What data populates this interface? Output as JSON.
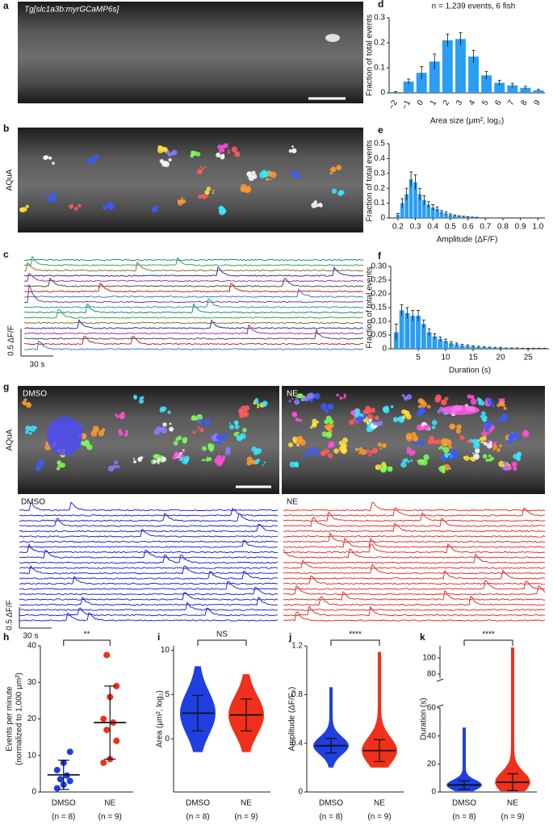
{
  "figure": {
    "panels": [
      "a",
      "b",
      "c",
      "g"
    ],
    "a": {
      "label": "Tg[slc1a3b:myrGCaMP6s]"
    },
    "b": {
      "label": "AQuA"
    },
    "c": {
      "scale_y": "0.5 ΔF/F",
      "scale_x": "30 s"
    },
    "g": {
      "conditions": [
        "DMSO",
        "NE"
      ],
      "image_label": "AQuA",
      "scale_y": "0.5 ΔF/F",
      "scale_x": "30 s"
    }
  },
  "chart_data": [
    {
      "panel": "d",
      "type": "bar",
      "annotation": "n = 1,239 events, 6 fish",
      "xlabel": "Area size (μm², log₂)",
      "ylabel": "Fraction of total events",
      "categories": [
        "−2",
        "−1",
        "0",
        "1",
        "2",
        "3",
        "4",
        "5",
        "6",
        "7",
        "8",
        "9"
      ],
      "values": [
        0.003,
        0.045,
        0.08,
        0.125,
        0.21,
        0.215,
        0.145,
        0.07,
        0.04,
        0.03,
        0.02,
        0.01
      ],
      "errors": [
        0.002,
        0.01,
        0.025,
        0.03,
        0.025,
        0.025,
        0.025,
        0.015,
        0.01,
        0.008,
        0.006,
        0.004
      ],
      "color": "#2a9df4",
      "ylim": [
        0,
        0.3
      ],
      "yticks": [
        0,
        0.1,
        0.2,
        0.3
      ]
    },
    {
      "panel": "e",
      "type": "bar",
      "xlabel": "Amplitude (ΔF/F)",
      "ylabel": "Fraction of total events",
      "x": [
        0.2,
        0.225,
        0.25,
        0.275,
        0.3,
        0.325,
        0.35,
        0.375,
        0.4,
        0.425,
        0.45,
        0.475,
        0.5,
        0.525,
        0.55,
        0.575,
        0.6,
        0.625,
        0.65
      ],
      "values": [
        0.02,
        0.1,
        0.16,
        0.26,
        0.24,
        0.16,
        0.12,
        0.09,
        0.07,
        0.06,
        0.04,
        0.03,
        0.02,
        0.015,
        0.01,
        0.008,
        0.006,
        0.004,
        0.003
      ],
      "errors": [
        0.01,
        0.03,
        0.04,
        0.05,
        0.05,
        0.04,
        0.03,
        0.02,
        0.02,
        0.015,
        0.01,
        0.01,
        0.008,
        0.006,
        0.005,
        0.004,
        0.003,
        0.002,
        0.002
      ],
      "color": "#2a9df4",
      "xlim": [
        0.15,
        1.04
      ],
      "xticks": [
        0.2,
        0.3,
        0.4,
        0.5,
        0.6,
        0.7,
        0.8,
        0.9,
        {
          "value": 1,
          "label": "1.0"
        }
      ],
      "ylim": [
        0,
        0.5
      ],
      "yticks": [
        0,
        0.1,
        0.2,
        0.3,
        0.4,
        0.5
      ]
    },
    {
      "panel": "f",
      "type": "bar",
      "xlabel": "Duration (s)",
      "ylabel": "Fraction of total events",
      "x": [
        1,
        2,
        3,
        4,
        5,
        6,
        7,
        8,
        9,
        10,
        11,
        12,
        13,
        14,
        15,
        16,
        17,
        18,
        19,
        20,
        21,
        22,
        23,
        24,
        25,
        26,
        27,
        28
      ],
      "values": [
        0.06,
        0.14,
        0.13,
        0.12,
        0.12,
        0.09,
        0.06,
        0.045,
        0.035,
        0.028,
        0.02,
        0.016,
        0.012,
        0.01,
        0.008,
        0.006,
        0.005,
        0.004,
        0.003,
        0.003,
        0.002,
        0.002,
        0.002,
        0.001,
        0.001,
        0.001,
        0.001,
        0.001
      ],
      "errors": [
        0.03,
        0.02,
        0.02,
        0.02,
        0.02,
        0.015,
        0.012,
        0.01,
        0.008,
        0.007,
        0.006,
        0.005,
        0.004,
        0.004,
        0.003,
        0.003,
        0.002,
        0.002,
        0.002,
        0.002,
        0.001,
        0.001,
        0.001,
        0.001,
        0.001,
        0.001,
        0.001,
        0.001
      ],
      "color": "#2a9df4",
      "xlim": [
        0,
        28.8
      ],
      "xticks": [
        5,
        10,
        15,
        20,
        25
      ],
      "ylim": [
        0,
        0.3
      ],
      "yticks": [
        0,
        0.05,
        {
          "value": 0.1,
          "label": "0.10"
        },
        0.15,
        {
          "value": 0.2,
          "label": "0.20"
        },
        0.25,
        {
          "value": 0.3,
          "label": "0.30"
        }
      ]
    },
    {
      "panel": "h",
      "type": "scatter_summary",
      "ylabel": [
        "Events per minute",
        "(normalized to 1,000 μm²)"
      ],
      "categories": [
        "DMSO",
        "NE"
      ],
      "sublabels": [
        "(n = 8)",
        "(n = 9)"
      ],
      "colors": [
        "#1f3fe0",
        "#f0301a"
      ],
      "points": [
        [
          1,
          2,
          3,
          3.5,
          4.5,
          6,
          8,
          11
        ],
        [
          8,
          9,
          14,
          17,
          19,
          20,
          26,
          29,
          37.5
        ]
      ],
      "mean": [
        4.7,
        19
      ],
      "sd": [
        4,
        10
      ],
      "significance": "**",
      "ylim": [
        0,
        40
      ],
      "yticks": [
        0,
        10,
        20,
        30,
        40
      ]
    },
    {
      "panel": "i",
      "type": "distribution",
      "ylabel": "Area (μm², log₂)",
      "categories": [
        "DMSO",
        "NE"
      ],
      "sublabels": [
        "(n = 8)",
        "(n = 9)"
      ],
      "colors": [
        "#1f3fe0",
        "#f0301a"
      ],
      "min": [
        -1.5,
        -1.5
      ],
      "max": [
        8.2,
        7.3
      ],
      "mean": [
        2.9,
        2.7
      ],
      "sd": [
        2,
        1.8
      ],
      "significance": "NS",
      "ylim": [
        -6,
        10.5
      ],
      "yticks": [
        0,
        5,
        10
      ]
    },
    {
      "panel": "j",
      "type": "distribution",
      "ylabel": "Amplitude (ΔF/F₀)",
      "categories": [
        "DMSO",
        "NE"
      ],
      "sublabels": [
        "(n = 8)",
        "(n = 9)"
      ],
      "colors": [
        "#1f3fe0",
        "#f0301a"
      ],
      "min": [
        0.2,
        0.2
      ],
      "max": [
        0.86,
        1.15
      ],
      "mean": [
        0.38,
        0.34
      ],
      "sd": [
        0.06,
        0.09
      ],
      "significance": "****",
      "ylim": [
        0,
        1.2
      ],
      "yticks": [
        0,
        0.4,
        0.8,
        1.2
      ]
    },
    {
      "panel": "k",
      "type": "distribution",
      "ylabel": "Duration (s)",
      "categories": [
        "DMSO",
        "NE"
      ],
      "sublabels": [
        "(n = 8)",
        "(n = 9)"
      ],
      "colors": [
        "#1f3fe0",
        "#f0301a"
      ],
      "min": [
        0.5,
        0.5
      ],
      "max": [
        46,
        113
      ],
      "mean": [
        5,
        7
      ],
      "sd": [
        3,
        6
      ],
      "significance": "****",
      "ylim": [
        0,
        60
      ],
      "yticks": [
        0,
        20,
        40,
        60
      ],
      "ylim_upper": [
        75,
        115
      ],
      "yticks_upper": [
        80,
        100
      ]
    }
  ]
}
